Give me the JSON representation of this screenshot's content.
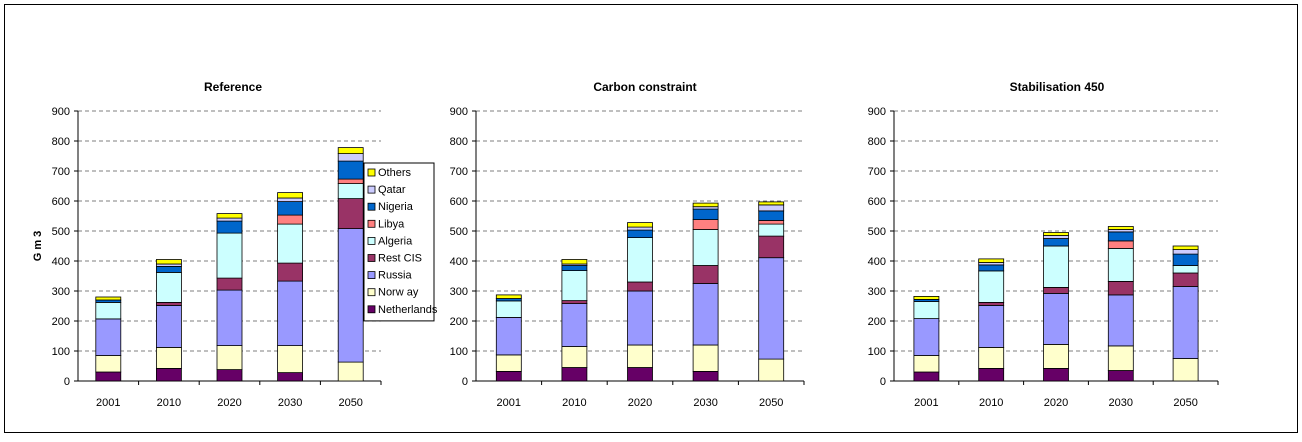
{
  "chart_data": [
    {
      "type": "bar",
      "stacked": true,
      "title": "Reference",
      "ylabel": "G m 3",
      "xlabel": "",
      "categories": [
        "2001",
        "2010",
        "2020",
        "2030",
        "2050"
      ],
      "ylim": [
        0,
        900
      ],
      "yticks": [
        0,
        100,
        200,
        300,
        400,
        500,
        600,
        700,
        800,
        900
      ],
      "grid": true,
      "legend": "right",
      "series": [
        {
          "name": "Netherlands",
          "color": "#660066",
          "values": [
            30,
            42,
            38,
            28,
            0
          ]
        },
        {
          "name": "Norw ay",
          "color": "#ffffcc",
          "values": [
            55,
            70,
            80,
            90,
            63
          ]
        },
        {
          "name": "Russia",
          "color": "#9999ff",
          "values": [
            122,
            140,
            185,
            215,
            445
          ]
        },
        {
          "name": "Rest CIS",
          "color": "#993366",
          "values": [
            0,
            10,
            40,
            60,
            100
          ]
        },
        {
          "name": "Algeria",
          "color": "#ccffff",
          "values": [
            55,
            100,
            150,
            130,
            50
          ]
        },
        {
          "name": "Libya",
          "color": "#ff8080",
          "values": [
            0,
            0,
            0,
            30,
            15
          ]
        },
        {
          "name": "Nigeria",
          "color": "#0066cc",
          "values": [
            8,
            20,
            40,
            45,
            60
          ]
        },
        {
          "name": "Qatar",
          "color": "#ccccff",
          "values": [
            0,
            8,
            10,
            12,
            25
          ]
        },
        {
          "name": "Others",
          "color": "#ffff00",
          "values": [
            10,
            15,
            15,
            18,
            20
          ]
        }
      ]
    },
    {
      "type": "bar",
      "stacked": true,
      "title": "Carbon constraint",
      "xlabel": "",
      "ylabel": "",
      "categories": [
        "2001",
        "2010",
        "2020",
        "2030",
        "2050"
      ],
      "ylim": [
        0,
        900
      ],
      "yticks": [
        0,
        100,
        200,
        300,
        400,
        500,
        600,
        700,
        800,
        900
      ],
      "grid": true,
      "series": [
        {
          "name": "Netherlands",
          "color": "#660066",
          "values": [
            32,
            45,
            45,
            32,
            0
          ]
        },
        {
          "name": "Norw ay",
          "color": "#ffffcc",
          "values": [
            55,
            70,
            75,
            88,
            73
          ]
        },
        {
          "name": "Russia",
          "color": "#9999ff",
          "values": [
            125,
            143,
            180,
            205,
            338
          ]
        },
        {
          "name": "Rest CIS",
          "color": "#993366",
          "values": [
            0,
            10,
            30,
            60,
            72
          ]
        },
        {
          "name": "Algeria",
          "color": "#ccffff",
          "values": [
            55,
            100,
            148,
            120,
            40
          ]
        },
        {
          "name": "Libya",
          "color": "#ff8080",
          "values": [
            0,
            0,
            0,
            33,
            12
          ]
        },
        {
          "name": "Nigeria",
          "color": "#0066cc",
          "values": [
            8,
            17,
            25,
            35,
            32
          ]
        },
        {
          "name": "Qatar",
          "color": "#ccccff",
          "values": [
            0,
            5,
            10,
            8,
            20
          ]
        },
        {
          "name": "Others",
          "color": "#ffff00",
          "values": [
            12,
            15,
            15,
            12,
            10
          ]
        }
      ]
    },
    {
      "type": "bar",
      "stacked": true,
      "title": "Stabilisation 450",
      "xlabel": "",
      "ylabel": "",
      "categories": [
        "2001",
        "2010",
        "2020",
        "2030",
        "2050"
      ],
      "ylim": [
        0,
        900
      ],
      "yticks": [
        0,
        100,
        200,
        300,
        400,
        500,
        600,
        700,
        800,
        900
      ],
      "grid": true,
      "series": [
        {
          "name": "Netherlands",
          "color": "#660066",
          "values": [
            30,
            42,
            42,
            35,
            0
          ]
        },
        {
          "name": "Norw ay",
          "color": "#ffffcc",
          "values": [
            55,
            70,
            80,
            82,
            75
          ]
        },
        {
          "name": "Russia",
          "color": "#9999ff",
          "values": [
            123,
            140,
            170,
            170,
            240
          ]
        },
        {
          "name": "Rest CIS",
          "color": "#993366",
          "values": [
            0,
            10,
            20,
            45,
            45
          ]
        },
        {
          "name": "Algeria",
          "color": "#ccffff",
          "values": [
            57,
            105,
            138,
            110,
            25
          ]
        },
        {
          "name": "Libya",
          "color": "#ff8080",
          "values": [
            0,
            0,
            0,
            25,
            0
          ]
        },
        {
          "name": "Nigeria",
          "color": "#0066cc",
          "values": [
            7,
            20,
            25,
            30,
            38
          ]
        },
        {
          "name": "Qatar",
          "color": "#ccccff",
          "values": [
            0,
            8,
            10,
            8,
            15
          ]
        },
        {
          "name": "Others",
          "color": "#ffff00",
          "values": [
            10,
            12,
            10,
            10,
            12
          ]
        }
      ]
    }
  ]
}
